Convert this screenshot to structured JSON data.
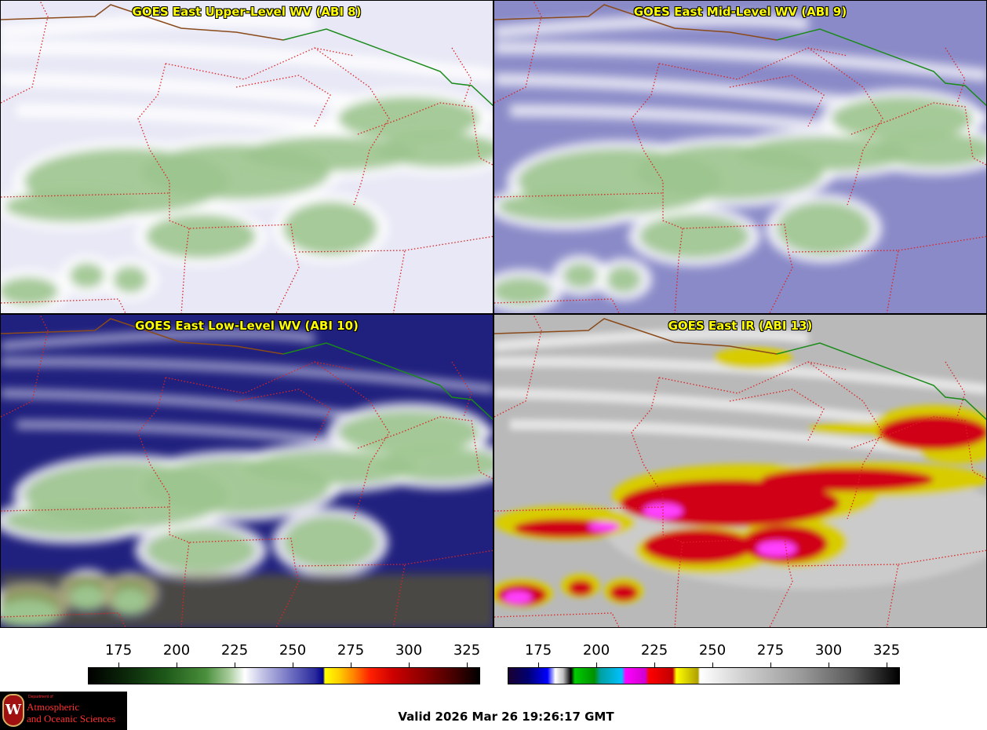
{
  "panels": [
    {
      "id": "p1",
      "title": "GOES East Upper-Level WV (ABI 8)",
      "colormap": "wv",
      "background": "#e8e8f6"
    },
    {
      "id": "p2",
      "title": "GOES East Mid-Level WV (ABI 9)",
      "colormap": "wv",
      "background": "#8a8ac8"
    },
    {
      "id": "p3",
      "title": "GOES East Low-Level WV (ABI 10)",
      "colormap": "wv",
      "background": "#20207e"
    },
    {
      "id": "p4",
      "title": "GOES East IR (ABI 13)",
      "colormap": "ir",
      "background": "#b9b9b9"
    }
  ],
  "colorbars": {
    "left": {
      "ticks": [
        "175",
        "200",
        "225",
        "250",
        "275",
        "300",
        "325"
      ]
    },
    "right": {
      "ticks": [
        "175",
        "200",
        "225",
        "250",
        "275",
        "300",
        "325"
      ]
    }
  },
  "colors": {
    "title_text": "#ffff00",
    "state_border": "#dd2222",
    "country_border": "#1a8a1a",
    "coast": "#8a4a1a"
  },
  "logo": {
    "emblem": "W",
    "department": "Department of",
    "line1": "Atmospheric",
    "line2": "and Oceanic Sciences"
  },
  "valid_text": "Valid 2026 Mar 26 19:26:17 GMT"
}
